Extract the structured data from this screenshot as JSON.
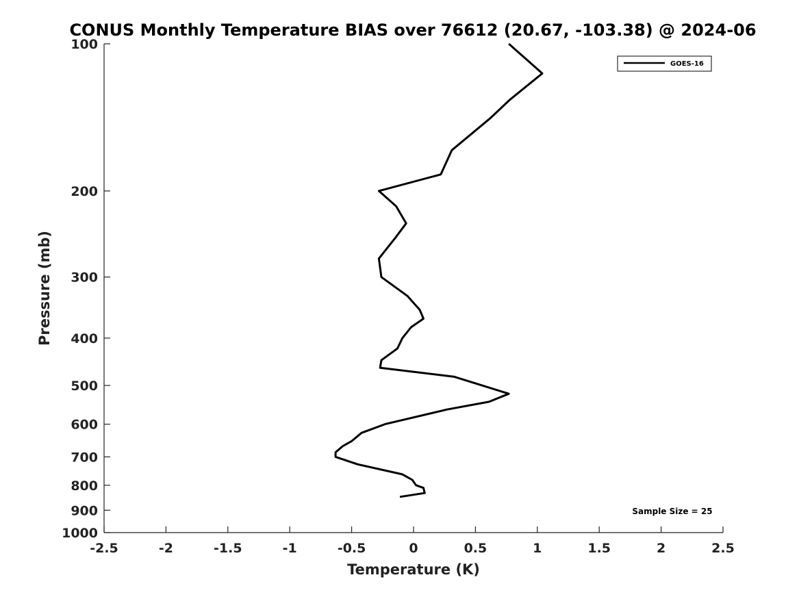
{
  "chart_data": {
    "type": "line",
    "title": "CONUS Monthly Temperature BIAS over 76612 (20.67, -103.38) @ 2024-06",
    "xlabel": "Temperature (K)",
    "ylabel": "Pressure (mb)",
    "xlim": [
      -2.5,
      2.5
    ],
    "ylim": [
      1000,
      100
    ],
    "y_scale": "log",
    "y_inverted": true,
    "grid": false,
    "x_ticks": [
      "-2.5",
      "-2",
      "-1.5",
      "-1",
      "-0.5",
      "0",
      "0.5",
      "1",
      "1.5",
      "2",
      "2.5"
    ],
    "y_ticks": [
      "100",
      "200",
      "300",
      "400",
      "500",
      "600",
      "700",
      "800",
      "900",
      "1000"
    ],
    "legend": {
      "position": "top-right"
    },
    "annotation": "Sample Size = 25",
    "series": [
      {
        "name": "GOES-16",
        "color": "#000000",
        "points": [
          [
            0.77,
            100
          ],
          [
            1.04,
            115
          ],
          [
            0.78,
            130
          ],
          [
            0.62,
            142
          ],
          [
            0.31,
            165
          ],
          [
            0.22,
            185
          ],
          [
            -0.28,
            200
          ],
          [
            -0.14,
            215
          ],
          [
            -0.06,
            233
          ],
          [
            -0.15,
            250
          ],
          [
            -0.28,
            275
          ],
          [
            -0.26,
            300
          ],
          [
            -0.05,
            328
          ],
          [
            0.05,
            350
          ],
          [
            0.08,
            365
          ],
          [
            -0.02,
            380
          ],
          [
            -0.09,
            400
          ],
          [
            -0.13,
            420
          ],
          [
            -0.26,
            444
          ],
          [
            -0.27,
            460
          ],
          [
            0.33,
            480
          ],
          [
            0.77,
            520
          ],
          [
            0.61,
            540
          ],
          [
            0.27,
            560
          ],
          [
            -0.23,
            600
          ],
          [
            -0.42,
            625
          ],
          [
            -0.5,
            650
          ],
          [
            -0.57,
            665
          ],
          [
            -0.63,
            685
          ],
          [
            -0.63,
            700
          ],
          [
            -0.45,
            725
          ],
          [
            -0.09,
            760
          ],
          [
            -0.01,
            780
          ],
          [
            0.02,
            800
          ],
          [
            0.08,
            810
          ],
          [
            0.09,
            830
          ],
          [
            -0.11,
            845
          ]
        ]
      }
    ]
  }
}
